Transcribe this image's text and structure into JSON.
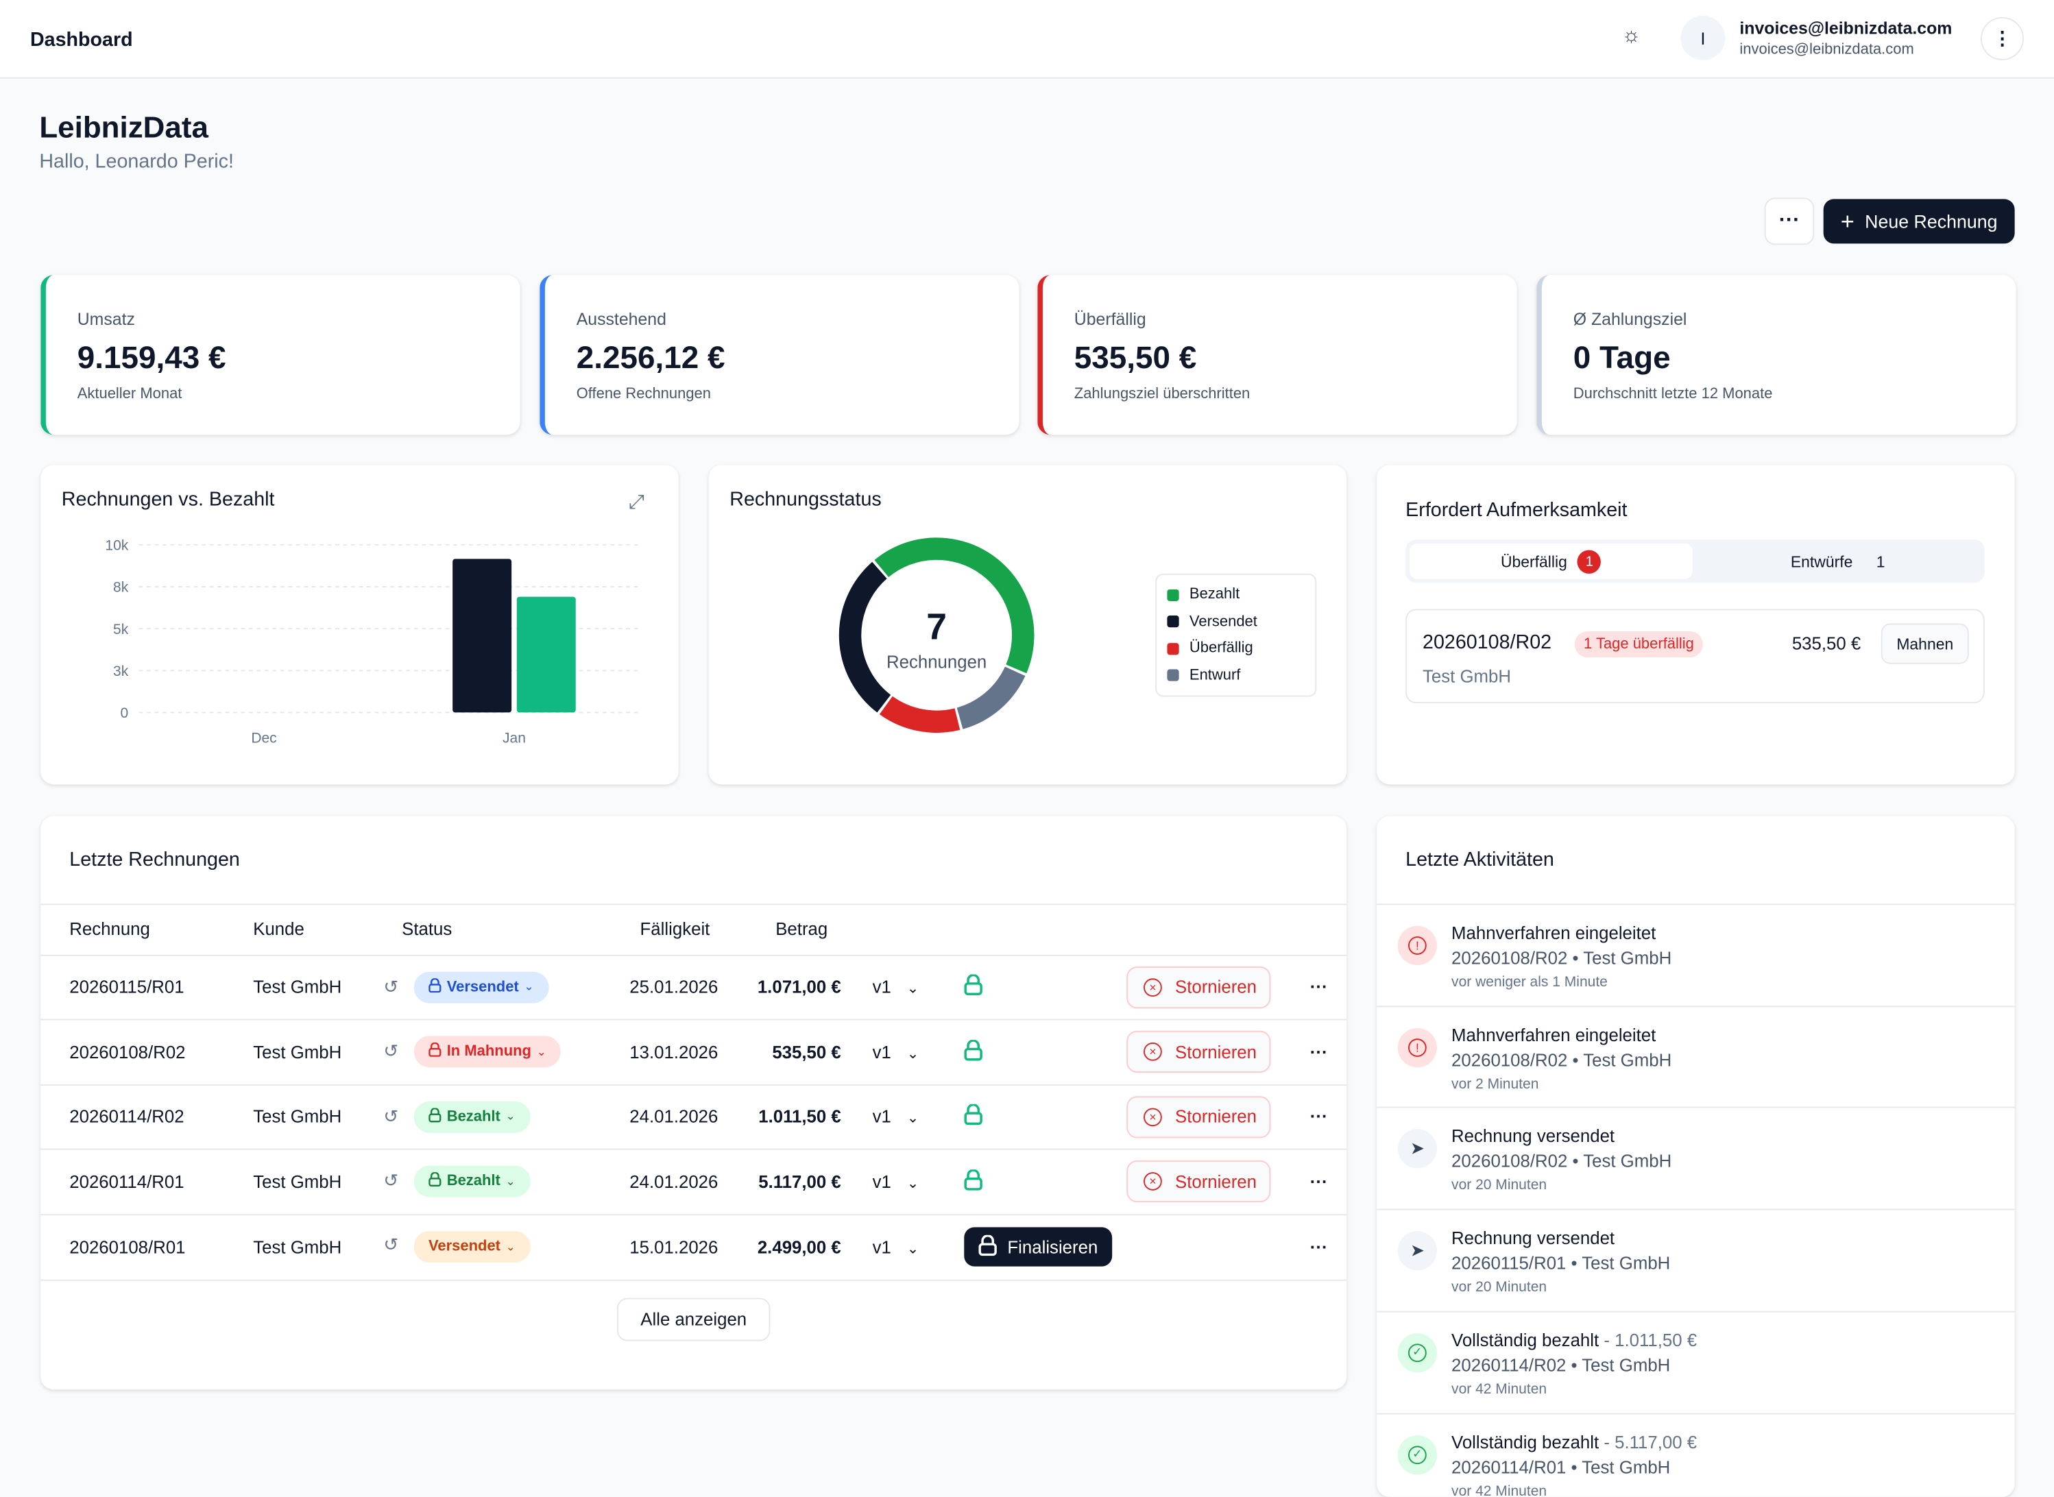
{
  "header": {
    "title": "Dashboard",
    "avatar_initial": "I",
    "user_name": "invoices@leibnizdata.com",
    "user_email": "invoices@leibnizdata.com"
  },
  "page": {
    "company": "LeibnizData",
    "greeting": "Hallo, Leonardo Peric!",
    "more_label": "···",
    "new_invoice_label": "Neue Rechnung"
  },
  "kpis": [
    {
      "label": "Umsatz",
      "value": "9.159,43 €",
      "sub": "Aktueller Monat",
      "color": "#10b981"
    },
    {
      "label": "Ausstehend",
      "value": "2.256,12 €",
      "sub": "Offene Rechnungen",
      "color": "#3b82f6"
    },
    {
      "label": "Überfällig",
      "value": "535,50 €",
      "sub": "Zahlungsziel überschritten",
      "color": "#dc2626"
    },
    {
      "label": "Ø Zahlungsziel",
      "value": "0 Tage",
      "sub": "Durchschnitt letzte 12 Monate",
      "color": "#cbd5e1"
    }
  ],
  "chart_data": [
    {
      "type": "bar",
      "title": "Rechnungen vs. Bezahlt",
      "categories": [
        "Dec",
        "Jan"
      ],
      "yticks": [
        "0",
        "3k",
        "5k",
        "8k",
        "10k"
      ],
      "ylim": [
        0,
        10000
      ],
      "grid": true,
      "series": [
        {
          "values": [
            0,
            9159
          ],
          "color": "#0f172a"
        },
        {
          "values": [
            0,
            6903
          ],
          "color": "#10b981"
        }
      ]
    },
    {
      "type": "pie",
      "title": "Rechnungsstatus",
      "center_value": "7",
      "center_label": "Rechnungen",
      "legend_position": "right",
      "slices": [
        {
          "name": "Bezahlt",
          "value": 3,
          "color": "#16a34a"
        },
        {
          "name": "Entwurf",
          "value": 1,
          "color": "#64748b"
        },
        {
          "name": "Überfällig",
          "value": 1,
          "color": "#dc2626"
        },
        {
          "name": "Versendet",
          "value": 2,
          "color": "#0f172a"
        }
      ],
      "legend": [
        "Bezahlt",
        "Versendet",
        "Überfällig",
        "Entwurf"
      ]
    }
  ],
  "attention": {
    "title": "Erfordert Aufmerksamkeit",
    "tabs": [
      {
        "label": "Überfällig",
        "count": "1"
      },
      {
        "label": "Entwürfe",
        "count": "1"
      }
    ],
    "item": {
      "number": "20260108/R02",
      "badge": "1 Tage überfällig",
      "amount": "535,50 €",
      "customer": "Test GmbH",
      "action": "Mahnen"
    }
  },
  "invoices": {
    "title": "Letzte Rechnungen",
    "columns": [
      "Rechnung",
      "Kunde",
      "Status",
      "Fälligkeit",
      "Betrag"
    ],
    "rows": [
      {
        "number": "20260115/R01",
        "customer": "Test GmbH",
        "status": "Versendet",
        "due": "25.01.2026",
        "amount": "1.071,00 €",
        "version": "v1",
        "action": "Stornieren"
      },
      {
        "number": "20260108/R02",
        "customer": "Test GmbH",
        "status": "In Mahnung",
        "due": "13.01.2026",
        "amount": "535,50 €",
        "version": "v1",
        "action": "Stornieren"
      },
      {
        "number": "20260114/R02",
        "customer": "Test GmbH",
        "status": "Bezahlt",
        "due": "24.01.2026",
        "amount": "1.011,50 €",
        "version": "v1",
        "action": "Stornieren"
      },
      {
        "number": "20260114/R01",
        "customer": "Test GmbH",
        "status": "Bezahlt",
        "due": "24.01.2026",
        "amount": "5.117,00 €",
        "version": "v1",
        "action": "Stornieren"
      },
      {
        "number": "20260108/R01",
        "customer": "Test GmbH",
        "status": "Versendet",
        "due": "15.01.2026",
        "amount": "2.499,00 €",
        "version": "v1",
        "action": "Finalisieren"
      }
    ],
    "show_all": "Alle anzeigen"
  },
  "activities": {
    "title": "Letzte Aktivitäten",
    "items": [
      {
        "title": "Mahnverfahren eingeleitet",
        "extra": "",
        "ref": "20260108/R02 • Test GmbH",
        "time": "vor weniger als 1 Minute",
        "icon": "alert-circle-icon"
      },
      {
        "title": "Mahnverfahren eingeleitet",
        "extra": "",
        "ref": "20260108/R02 • Test GmbH",
        "time": "vor 2 Minuten",
        "icon": "alert-circle-icon"
      },
      {
        "title": "Rechnung versendet",
        "extra": "",
        "ref": "20260108/R02 • Test GmbH",
        "time": "vor 20 Minuten",
        "icon": "send-icon"
      },
      {
        "title": "Rechnung versendet",
        "extra": "",
        "ref": "20260115/R01 • Test GmbH",
        "time": "vor 20 Minuten",
        "icon": "send-icon"
      },
      {
        "title": "Vollständig bezahlt",
        "extra": " - 1.011,50 €",
        "ref": "20260114/R02 • Test GmbH",
        "time": "vor 42 Minuten",
        "icon": "check-circle-icon"
      },
      {
        "title": "Vollständig bezahlt",
        "extra": " - 5.117,00 €",
        "ref": "20260114/R01 • Test GmbH",
        "time": "vor 42 Minuten",
        "icon": "check-circle-icon"
      }
    ]
  }
}
